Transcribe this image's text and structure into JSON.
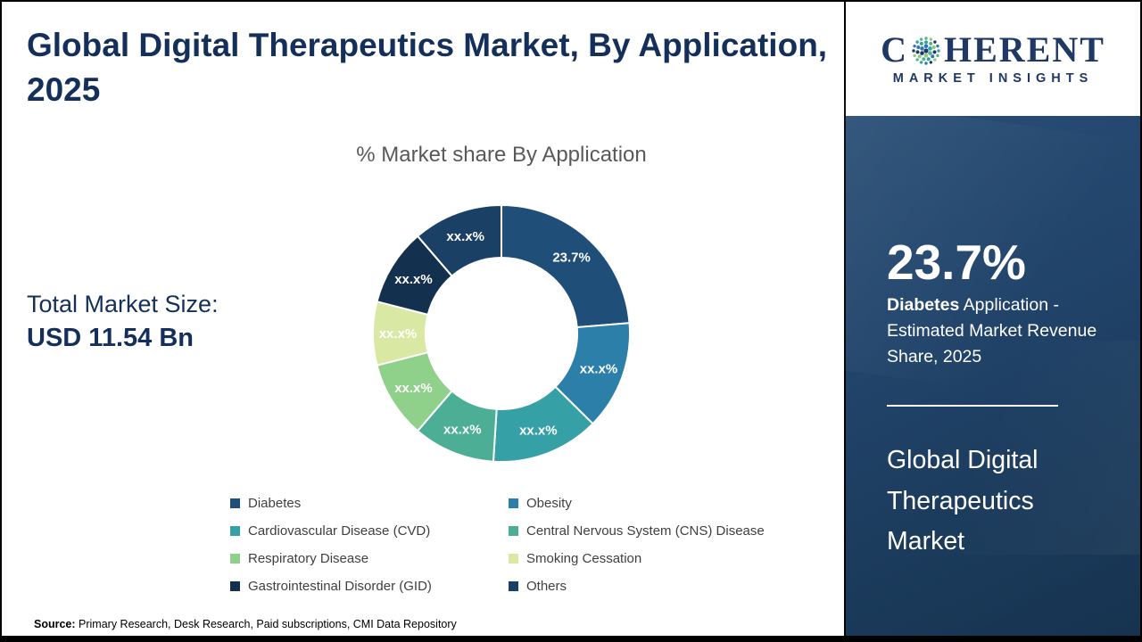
{
  "header": {
    "title": "Global Digital Therapeutics Market, By Application, 2025"
  },
  "left_panel": {
    "total_label": "Total Market Size:",
    "total_value": "USD 11.54 Bn"
  },
  "chart_data": {
    "type": "pie",
    "donut": true,
    "title": "% Market share By Application",
    "legend_position": "bottom",
    "inner_radius_ratio": 0.59,
    "segments": [
      {
        "label": "Diabetes",
        "display_label": "23.7%",
        "value": 23.7,
        "color": "#1F4E79"
      },
      {
        "label": "Obesity",
        "display_label": "xx.x%",
        "value": 13.7,
        "color": "#2C7FA8"
      },
      {
        "label": "Cardiovascular Disease (CVD)",
        "display_label": "xx.x%",
        "value": 13.6,
        "color": "#35A0A5"
      },
      {
        "label": "Central Nervous System (CNS) Disease",
        "display_label": "xx.x%",
        "value": 10.3,
        "color": "#4CAE95"
      },
      {
        "label": "Respiratory Disease",
        "display_label": "xx.x%",
        "value": 9.7,
        "color": "#8FD18A"
      },
      {
        "label": "Smoking Cessation",
        "display_label": "xx.x%",
        "value": 8.0,
        "color": "#D9E8A2"
      },
      {
        "label": "Gastrointestinal Disorder (GID)",
        "display_label": "xx.x%",
        "value": 9.7,
        "color": "#14304F"
      },
      {
        "label": "Others",
        "display_label": "xx.x%",
        "value": 11.3,
        "color": "#1A4065"
      }
    ]
  },
  "sidebar": {
    "logo": {
      "brand_c": "C",
      "brand_rest": "HERENT",
      "brand_sub": "MARKET INSIGHTS"
    },
    "stat_value": "23.7%",
    "stat_desc_bold": "Diabetes",
    "stat_desc_rest": " Application - Estimated Market Revenue Share, 2025",
    "market_title": "Global Digital Therapeutics Market"
  },
  "footer": {
    "source_label": "Source:",
    "source_text": " Primary Research, Desk Research, Paid subscriptions, CMI Data Repository"
  }
}
